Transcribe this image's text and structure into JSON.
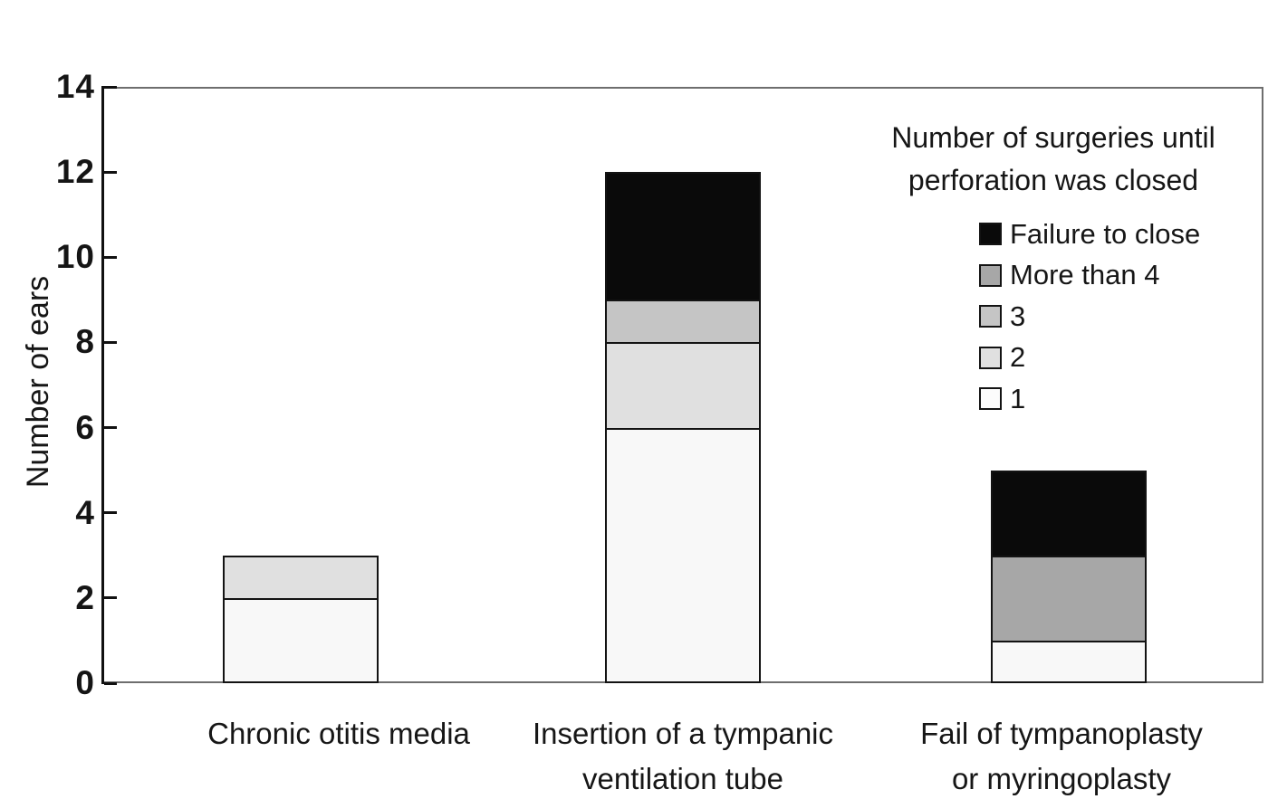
{
  "chart_data": {
    "type": "bar",
    "stacked": true,
    "title": "",
    "xlabel": "",
    "ylabel": "Number of ears",
    "ylim": [
      0,
      14
    ],
    "yticks": [
      0,
      2,
      4,
      6,
      8,
      10,
      12,
      14
    ],
    "grid": false,
    "categories": [
      "Chronic otitis media",
      "Insertion of a tympanic ventilation tube",
      "Fail of tympanoplasty or myringoplasty"
    ],
    "category_label_lines": [
      [
        "Chronic otitis media"
      ],
      [
        "Insertion of a tympanic",
        "ventilation tube"
      ],
      [
        "Fail of tympanoplasty",
        "or myringoplasty"
      ]
    ],
    "series": [
      {
        "name": "1",
        "color": "#f8f8f8",
        "values": [
          2,
          6,
          1
        ]
      },
      {
        "name": "2",
        "color": "#e0e0e0",
        "values": [
          1,
          2,
          0
        ]
      },
      {
        "name": "3",
        "color": "#c5c5c5",
        "values": [
          0,
          1,
          0
        ]
      },
      {
        "name": "More than 4",
        "color": "#a7a7a7",
        "values": [
          0,
          0,
          2
        ]
      },
      {
        "name": "Failure to close",
        "color": "#0a0a0a",
        "values": [
          0,
          3,
          2
        ]
      }
    ],
    "totals": [
      3,
      12,
      5
    ],
    "legend": {
      "position": "top-right-inside",
      "title_lines": [
        "Number of surgeries until",
        "perforation was closed"
      ],
      "entries": [
        {
          "label": "Failure to close",
          "color": "#0a0a0a"
        },
        {
          "label": "More than 4",
          "color": "#a7a7a7"
        },
        {
          "label": "3",
          "color": "#c5c5c5"
        },
        {
          "label": "2",
          "color": "#e0e0e0"
        },
        {
          "label": "1",
          "color": "#fcfcfc"
        }
      ]
    },
    "colors": {
      "axis": "#111111",
      "plot_border": "#6e6e6e",
      "segment_border": "#131313",
      "background": "#ffffff"
    }
  }
}
